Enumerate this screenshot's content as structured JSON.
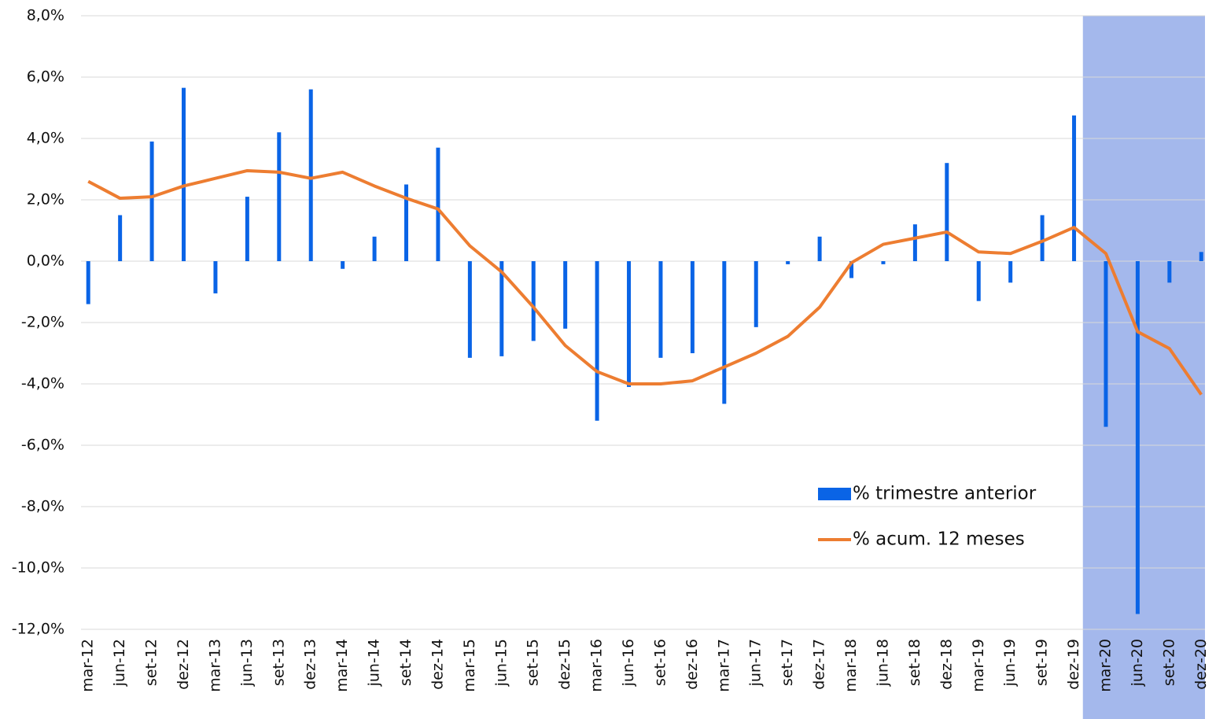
{
  "chart_data": {
    "type": "bar_line",
    "categories": [
      "mar-12",
      "jun-12",
      "set-12",
      "dez-12",
      "mar-13",
      "jun-13",
      "set-13",
      "dez-13",
      "mar-14",
      "jun-14",
      "set-14",
      "dez-14",
      "mar-15",
      "jun-15",
      "set-15",
      "dez-15",
      "mar-16",
      "jun-16",
      "set-16",
      "dez-16",
      "mar-17",
      "jun-17",
      "set-17",
      "dez-17",
      "mar-18",
      "jun-18",
      "set-18",
      "dez-18",
      "mar-19",
      "jun-19",
      "set-19",
      "dez-19",
      "mar-20",
      "jun-20",
      "set-20",
      "dez-20"
    ],
    "series": [
      {
        "name": "% trimestre anterior",
        "type": "bar",
        "color": "#0a64e6",
        "values": [
          -1.4,
          1.5,
          3.9,
          5.65,
          -1.05,
          2.1,
          4.2,
          5.6,
          -0.25,
          0.8,
          2.5,
          3.7,
          -3.15,
          -3.1,
          -2.6,
          -2.2,
          -5.2,
          -4.1,
          -3.15,
          -3.0,
          -4.65,
          -2.15,
          -0.1,
          0.8,
          -0.55,
          -0.1,
          1.2,
          3.2,
          -1.3,
          -0.7,
          1.5,
          4.75,
          -5.4,
          -11.5,
          -0.7,
          0.3
        ]
      },
      {
        "name": "% acum. 12 meses",
        "type": "line",
        "color": "#ed7d31",
        "values": [
          2.6,
          2.05,
          2.1,
          2.45,
          2.7,
          2.95,
          2.9,
          2.7,
          2.9,
          2.45,
          2.05,
          1.7,
          0.5,
          -0.35,
          -1.5,
          -2.75,
          -3.6,
          -4.0,
          -4.0,
          -3.9,
          -3.45,
          -3.0,
          -2.45,
          -1.5,
          -0.05,
          0.55,
          0.75,
          0.95,
          0.3,
          0.25,
          0.65,
          1.1,
          0.25,
          -2.3,
          -2.85,
          -4.35
        ]
      }
    ],
    "ylim": [
      -12,
      8
    ],
    "yticks": [
      {
        "value": -12,
        "label": "-12,0%"
      },
      {
        "value": -10,
        "label": "-10,0%"
      },
      {
        "value": -8,
        "label": "-8,0%"
      },
      {
        "value": -6,
        "label": "-6,0%"
      },
      {
        "value": -4,
        "label": "-4,0%"
      },
      {
        "value": -2,
        "label": "-2,0%"
      },
      {
        "value": 0,
        "label": "0,0%"
      },
      {
        "value": 2,
        "label": "2,0%"
      },
      {
        "value": 4,
        "label": "4,0%"
      },
      {
        "value": 6,
        "label": "6,0%"
      },
      {
        "value": 8,
        "label": "8,0%"
      }
    ],
    "grid": true,
    "highlight": {
      "from": "mar-20",
      "to": "dez-20",
      "color": "#a4b8ec"
    },
    "legend": "lower right"
  }
}
